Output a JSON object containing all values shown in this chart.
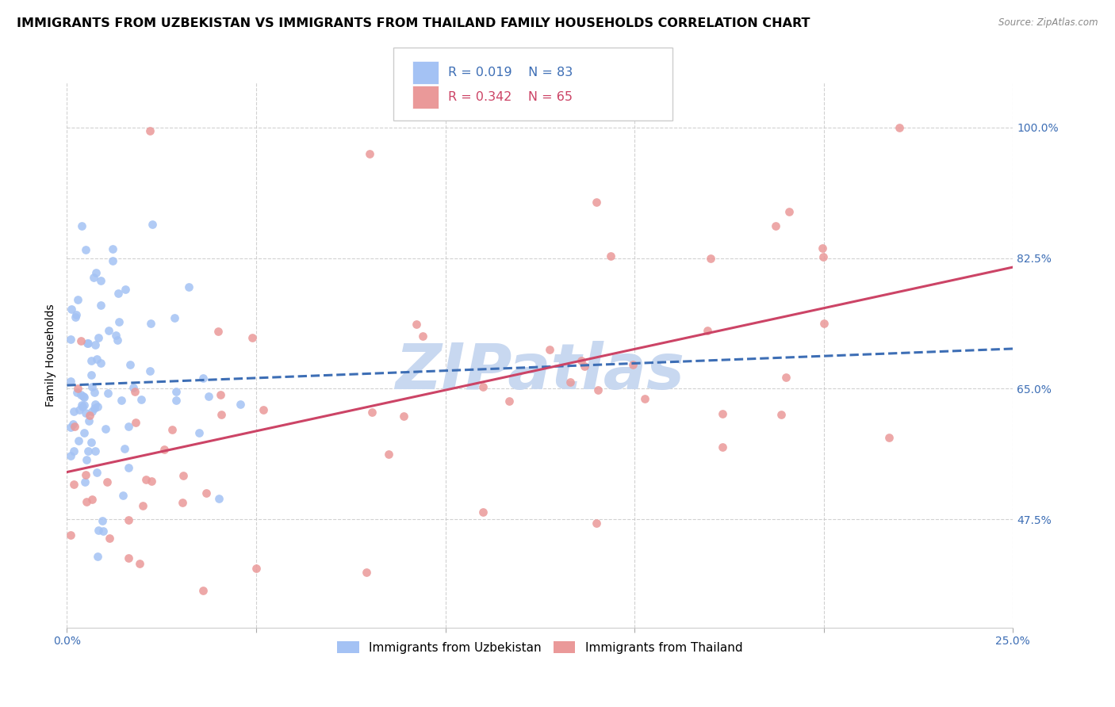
{
  "title": "IMMIGRANTS FROM UZBEKISTAN VS IMMIGRANTS FROM THAILAND FAMILY HOUSEHOLDS CORRELATION CHART",
  "source": "Source: ZipAtlas.com",
  "ylabel": "Family Households",
  "legend_r1": "R = 0.019",
  "legend_n1": "N = 83",
  "legend_r2": "R = 0.342",
  "legend_n2": "N = 65",
  "uzbekistan_color": "#a4c2f4",
  "thailand_color": "#ea9999",
  "uzbekistan_line_color": "#3d6eb5",
  "thailand_line_color": "#cc4466",
  "background_color": "#ffffff",
  "grid_color": "#cccccc",
  "title_fontsize": 11.5,
  "axis_label_fontsize": 10,
  "tick_fontsize": 10,
  "watermark_text": "ZIPatlas",
  "watermark_color": "#c8d8f0",
  "xlim": [
    0.0,
    0.25
  ],
  "ylim": [
    0.33,
    1.06
  ],
  "yticks": [
    0.475,
    0.65,
    0.825,
    1.0
  ],
  "ytick_labels": [
    "47.5%",
    "65.0%",
    "82.5%",
    "100.0%"
  ],
  "xtick_labels": [
    "0.0%",
    "",
    "",
    "",
    "",
    "25.0%"
  ],
  "xticks": [
    0.0,
    0.05,
    0.1,
    0.15,
    0.2,
    0.25
  ],
  "legend_label_uz": "Immigrants from Uzbekistan",
  "legend_label_th": "Immigrants from Thailand"
}
